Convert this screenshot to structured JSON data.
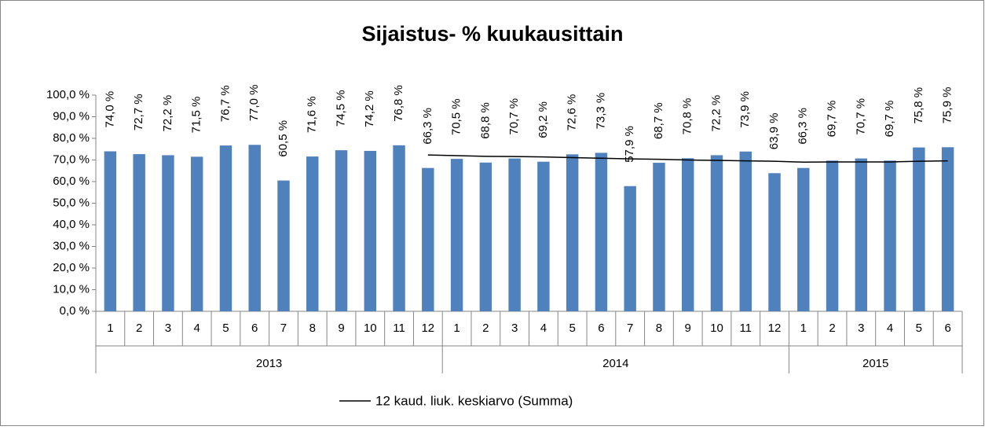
{
  "chart_data": {
    "type": "bar",
    "title": "Sijaistus- % kuukausittain",
    "groups": [
      {
        "name": "2013",
        "categories": [
          "1",
          "2",
          "3",
          "4",
          "5",
          "6",
          "7",
          "8",
          "9",
          "10",
          "11",
          "12"
        ]
      },
      {
        "name": "2014",
        "categories": [
          "1",
          "2",
          "3",
          "4",
          "5",
          "6",
          "7",
          "8",
          "9",
          "10",
          "11",
          "12"
        ]
      },
      {
        "name": "2015",
        "categories": [
          "1",
          "2",
          "3",
          "4",
          "5",
          "6"
        ]
      }
    ],
    "series": [
      {
        "name": "Sijaistus-%",
        "type": "bar",
        "color": "#4f81bd",
        "values": [
          74.0,
          72.7,
          72.2,
          71.5,
          76.7,
          77.0,
          60.5,
          71.6,
          74.5,
          74.2,
          76.8,
          66.3,
          70.5,
          68.8,
          70.7,
          69.2,
          72.6,
          73.3,
          57.9,
          68.7,
          70.8,
          72.2,
          73.9,
          63.9,
          66.3,
          69.7,
          70.7,
          69.7,
          75.8,
          75.9
        ],
        "value_labels": [
          "74,0 %",
          "72,7 %",
          "72,2 %",
          "71,5 %",
          "76,7 %",
          "77,0 %",
          "60,5 %",
          "71,6 %",
          "74,5 %",
          "74,2 %",
          "76,8 %",
          "66,3 %",
          "70,5 %",
          "68,8 %",
          "70,7 %",
          "69,2 %",
          "72,6 %",
          "73,3 %",
          "57,9 %",
          "68,7 %",
          "70,8 %",
          "72,2 %",
          "73,9 %",
          "63,9 %",
          "66,3 %",
          "69,7 %",
          "70,7 %",
          "69,7 %",
          "75,8 %",
          "75,9 %"
        ]
      },
      {
        "name": "12 kaud. liuk. keskiarvo (Summa)",
        "type": "line",
        "color": "#000000",
        "values": [
          null,
          null,
          null,
          null,
          null,
          null,
          null,
          null,
          null,
          null,
          null,
          72.3,
          72.0,
          71.7,
          71.6,
          71.4,
          71.1,
          70.8,
          70.5,
          70.3,
          70.0,
          69.8,
          69.6,
          69.4,
          69.0,
          69.1,
          69.1,
          69.1,
          69.4,
          69.6
        ]
      }
    ],
    "ylim": [
      0,
      100
    ],
    "yticks": [
      {
        "value": 0,
        "label": "0,0 %"
      },
      {
        "value": 10,
        "label": "10,0 %"
      },
      {
        "value": 20,
        "label": "20,0 %"
      },
      {
        "value": 30,
        "label": "30,0 %"
      },
      {
        "value": 40,
        "label": "40,0 %"
      },
      {
        "value": 50,
        "label": "50,0 %"
      },
      {
        "value": 60,
        "label": "60,0 %"
      },
      {
        "value": 70,
        "label": "70,0 %"
      },
      {
        "value": 80,
        "label": "80,0 %"
      },
      {
        "value": 90,
        "label": "90,0 %"
      },
      {
        "value": 100,
        "label": "100,0 %"
      }
    ],
    "grid": false,
    "legend": "bottom"
  }
}
